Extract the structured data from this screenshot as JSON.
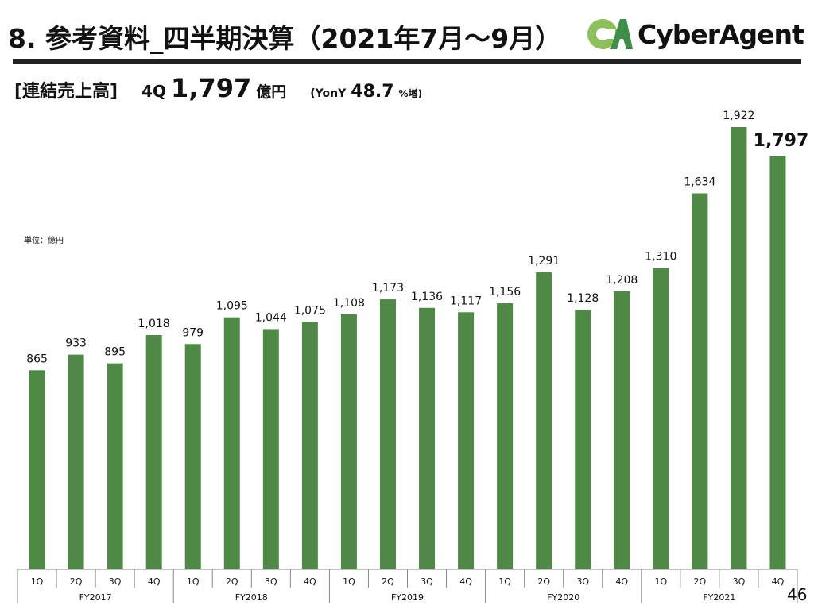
{
  "header": {
    "title": "8. 参考資料_四半期決算（2021年7月～9月）",
    "logo_text": "CyberAgent",
    "logo_mark": "CA"
  },
  "summary": {
    "label": "[連結売上高]",
    "quarter": "4Q",
    "value": "1,797",
    "unit": "億円",
    "yoy_prefix": "(YonY",
    "yoy_value": "48.7",
    "yoy_suffix": "%増)"
  },
  "unit_label": "単位：億円",
  "page_number": "46",
  "colors": {
    "bar": "#4e8a45",
    "logo_light": "#8dc05a",
    "logo_dark": "#3e8e4a"
  },
  "chart_data": {
    "type": "bar",
    "title": "",
    "xlabel": "",
    "ylabel": "",
    "ylim": [
      0,
      1922
    ],
    "grid": false,
    "categories": [
      "1Q",
      "2Q",
      "3Q",
      "4Q",
      "1Q",
      "2Q",
      "3Q",
      "4Q",
      "1Q",
      "2Q",
      "3Q",
      "4Q",
      "1Q",
      "2Q",
      "3Q",
      "4Q",
      "1Q",
      "2Q",
      "3Q",
      "4Q"
    ],
    "groups": [
      "FY2017",
      "FY2018",
      "FY2019",
      "FY2020",
      "FY2021"
    ],
    "values": [
      865,
      933,
      895,
      1018,
      979,
      1095,
      1044,
      1075,
      1108,
      1173,
      1136,
      1117,
      1156,
      1291,
      1128,
      1208,
      1310,
      1634,
      1922,
      1797
    ],
    "labels": [
      "865",
      "933",
      "895",
      "1,018",
      "979",
      "1,095",
      "1,044",
      "1,075",
      "1,108",
      "1,173",
      "1,136",
      "1,117",
      "1,156",
      "1,291",
      "1,128",
      "1,208",
      "1,310",
      "1,634",
      "1,922",
      "1,797"
    ]
  }
}
